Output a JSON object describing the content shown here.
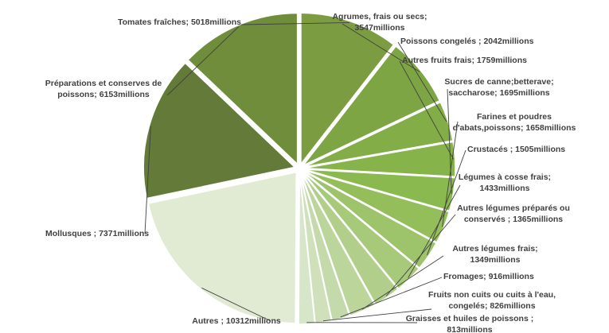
{
  "chart_data": {
    "type": "pie",
    "unit": "millions",
    "slices": [
      {
        "name": "Tomates fraîches",
        "value": 5018,
        "label": "Tomates fraîches; 5018millions",
        "color": "#7b9c40"
      },
      {
        "name": "Agrumes, frais ou secs",
        "value": 3547,
        "label": "Agrumes, frais ou secs; 3547millions",
        "color": "#7ea544"
      },
      {
        "name": "Poissons congelés",
        "value": 2042,
        "label": "Poissons congelés ; 2042millions",
        "color": "#82ad47"
      },
      {
        "name": "Autres fruits frais",
        "value": 1759,
        "label": "Autres fruits frais; 1759millions",
        "color": "#86b44b"
      },
      {
        "name": "Sucres de canne;betterave; saccharose",
        "value": 1695,
        "label": "Sucres de canne;betterave; saccharose; 1695millions",
        "color": "#8aba4f"
      },
      {
        "name": "Farines et poudres d'abats,poissons",
        "value": 1658,
        "label": "Farines et poudres d'abats,poissons; 1658millions",
        "color": "#93be5a"
      },
      {
        "name": "Crustacés",
        "value": 1505,
        "label": "Crustacés ; 1505millions",
        "color": "#9dc46a"
      },
      {
        "name": "Légumes à cosse frais",
        "value": 1433,
        "label": "Légumes à cosse frais; 1433millions",
        "color": "#a7c97a"
      },
      {
        "name": "Autres légumes préparés ou conservés",
        "value": 1365,
        "label": "Autres légumes préparés ou conservés ; 1365millions",
        "color": "#b1cf8a"
      },
      {
        "name": "Autres légumes frais",
        "value": 1349,
        "label": "Autres légumes frais; 1349millions",
        "color": "#bbd59b"
      },
      {
        "name": "Fromages",
        "value": 916,
        "label": "Fromages; 916millions",
        "color": "#c5daab"
      },
      {
        "name": "Fruits non cuits ou cuits à l'eau, congelés",
        "value": 826,
        "label": "Fruits non cuits ou cuits à l'eau, congelés; 826millions",
        "color": "#cfe0bb"
      },
      {
        "name": "Graisses et huiles de poissons",
        "value": 813,
        "label": "Graisses et huiles de poissons ; 813millions",
        "color": "#d7e5c8"
      },
      {
        "name": "Autres",
        "value": 10312,
        "label": "Autres ; 10312millions",
        "color": "#e1ebd4"
      },
      {
        "name": "Mollusques",
        "value": 7371,
        "label": "Mollusques ; 7371millions",
        "color": "#637a38"
      },
      {
        "name": "Préparations et conserves de poissons",
        "value": 6153,
        "label": "Préparations et conserves de poissons; 6153millions",
        "color": "#6f8d3b"
      }
    ]
  }
}
